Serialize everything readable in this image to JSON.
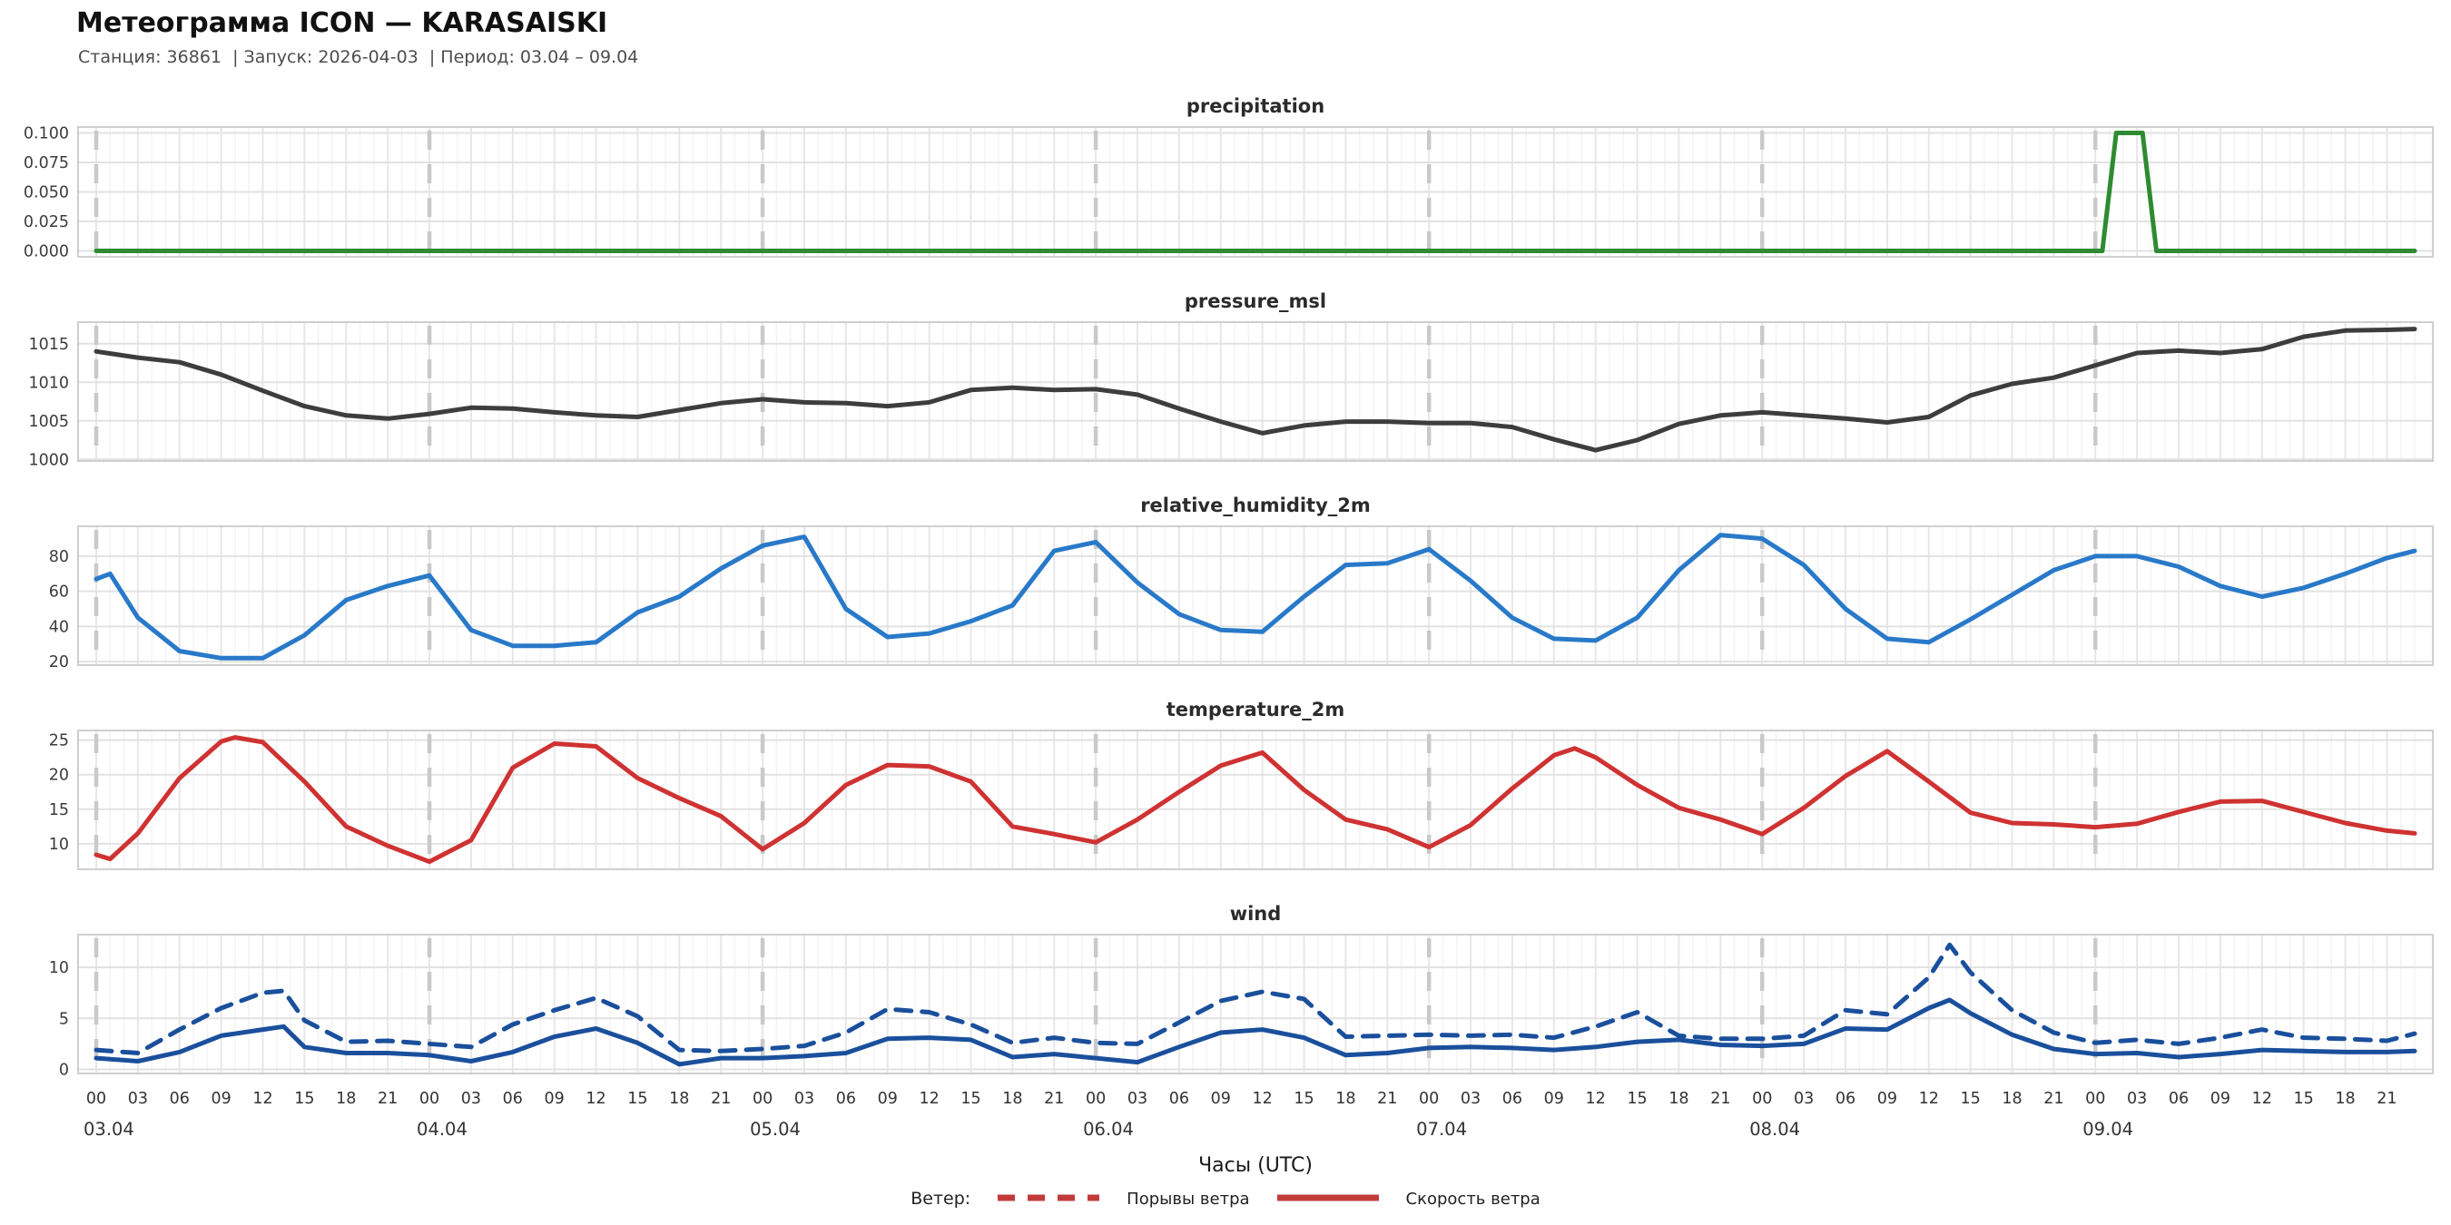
{
  "header": {
    "title": "Метеограмма ICON — KARASAISKI",
    "subtitle": "Станция: 36861  | Запуск: 2026-04-03  | Период: 03.04 – 09.04"
  },
  "xaxis": {
    "label": "Часы (UTC)",
    "hour_tick_step": 3,
    "hour_labels_cycle": [
      "00",
      "03",
      "06",
      "09",
      "12",
      "15",
      "18",
      "21"
    ],
    "days": [
      "03.04",
      "04.04",
      "05.04",
      "06.04",
      "07.04",
      "08.04",
      "09.04"
    ],
    "total_hours": 167
  },
  "legend": {
    "prefix": "Ветер:",
    "items": [
      {
        "label": "Порывы ветра",
        "style": "dashed",
        "color": "#c23b3b"
      },
      {
        "label": "Скорость ветра",
        "style": "solid",
        "color": "#c23b3b"
      }
    ]
  },
  "chart_data": [
    {
      "type": "line",
      "title": "precipitation",
      "color": "#2e8b32",
      "ylim": [
        -0.005,
        0.105
      ],
      "yticks": [
        0,
        0.025,
        0.05,
        0.075,
        0.1
      ],
      "ytick_labels": [
        "0.000",
        "0.025",
        "0.050",
        "0.075",
        "0.100"
      ],
      "series": [
        {
          "name": "precipitation",
          "style": "solid",
          "x": [
            0,
            144.5,
            145.5,
            147.4,
            148.4,
            167
          ],
          "values": [
            0,
            0,
            0.1,
            0.1,
            0,
            0
          ]
        }
      ]
    },
    {
      "type": "line",
      "title": "pressure_msl",
      "color": "#3d3d3d",
      "ylim": [
        999.8,
        1017.8
      ],
      "yticks": [
        1000,
        1005,
        1010,
        1015
      ],
      "ytick_labels": [
        "1000",
        "1005",
        "1010",
        "1015"
      ],
      "series": [
        {
          "name": "pressure_msl",
          "style": "solid",
          "x": [
            0,
            3,
            6,
            9,
            12,
            15,
            18,
            21,
            24,
            27,
            30,
            33,
            36,
            39,
            42,
            45,
            48,
            51,
            54,
            57,
            60,
            63,
            66,
            69,
            72,
            75,
            78,
            81,
            84,
            87,
            90,
            93,
            96,
            99,
            102,
            105,
            108,
            111,
            114,
            117,
            120,
            123,
            126,
            129,
            132,
            135,
            138,
            141,
            144,
            147,
            150,
            153,
            156,
            159,
            162,
            165,
            167
          ],
          "values": [
            1014.0,
            1013.2,
            1012.6,
            1011.0,
            1008.9,
            1006.9,
            1005.7,
            1005.3,
            1005.9,
            1006.7,
            1006.6,
            1006.1,
            1005.7,
            1005.5,
            1006.4,
            1007.3,
            1007.8,
            1007.4,
            1007.3,
            1006.9,
            1007.4,
            1009.0,
            1009.3,
            1009.0,
            1009.1,
            1008.4,
            1006.6,
            1004.9,
            1003.4,
            1004.4,
            1004.9,
            1004.9,
            1004.7,
            1004.7,
            1004.2,
            1002.6,
            1001.2,
            1002.5,
            1004.6,
            1005.7,
            1006.1,
            1005.7,
            1005.3,
            1004.8,
            1005.5,
            1008.3,
            1009.8,
            1010.6,
            1012.2,
            1013.8,
            1014.1,
            1013.8,
            1014.3,
            1015.9,
            1016.7,
            1016.8,
            1016.9
          ]
        }
      ]
    },
    {
      "type": "line",
      "title": "relative_humidity_2m",
      "color": "#2979c9",
      "ylim": [
        18,
        97
      ],
      "yticks": [
        20,
        40,
        60,
        80
      ],
      "ytick_labels": [
        "20",
        "40",
        "60",
        "80"
      ],
      "series": [
        {
          "name": "relative_humidity_2m",
          "style": "solid",
          "x": [
            0,
            1,
            3,
            6,
            9,
            12,
            15,
            18,
            21,
            24,
            27,
            30,
            33,
            36,
            39,
            42,
            45,
            48,
            51,
            54,
            57,
            60,
            63,
            66,
            69,
            72,
            75,
            78,
            81,
            84,
            87,
            90,
            93,
            96,
            99,
            102,
            105,
            108,
            111,
            114,
            117,
            120,
            123,
            126,
            129,
            132,
            135,
            138,
            141,
            144,
            147,
            150,
            153,
            156,
            159,
            162,
            165,
            167
          ],
          "values": [
            67,
            70,
            45,
            26,
            22,
            22,
            35,
            55,
            63,
            69,
            38,
            29,
            29,
            31,
            48,
            57,
            73,
            86,
            91,
            50,
            34,
            36,
            43,
            52,
            83,
            88,
            65,
            47,
            38,
            37,
            57,
            75,
            76,
            84,
            66,
            45,
            33,
            32,
            45,
            72,
            92,
            90,
            75,
            50,
            33,
            31,
            44,
            58,
            72,
            80,
            80,
            74,
            63,
            57,
            62,
            70,
            79,
            83
          ]
        }
      ]
    },
    {
      "type": "line",
      "title": "temperature_2m",
      "color": "#cf3232",
      "ylim": [
        6.3,
        26.4
      ],
      "yticks": [
        10,
        15,
        20,
        25
      ],
      "ytick_labels": [
        "10",
        "15",
        "20",
        "25"
      ],
      "series": [
        {
          "name": "temperature_2m",
          "style": "solid",
          "x": [
            0,
            1,
            3,
            6,
            9,
            10,
            12,
            15,
            18,
            21,
            24,
            27,
            30,
            33,
            36,
            39,
            42,
            45,
            48,
            51,
            54,
            57,
            60,
            63,
            66,
            69,
            72,
            75,
            78,
            81,
            84,
            87,
            90,
            93,
            96,
            99,
            102,
            105,
            106.5,
            108,
            111,
            114,
            117,
            120,
            123,
            126,
            129,
            132,
            135,
            138,
            141,
            144,
            147,
            150,
            153,
            156,
            159,
            162,
            165,
            167
          ],
          "values": [
            8.4,
            7.8,
            11.5,
            19.5,
            24.8,
            25.4,
            24.7,
            19.0,
            12.5,
            9.7,
            7.4,
            10.5,
            21.0,
            24.5,
            24.1,
            19.5,
            16.6,
            14.0,
            9.2,
            13.0,
            18.5,
            21.4,
            21.2,
            19.0,
            12.5,
            11.4,
            10.2,
            13.5,
            17.5,
            21.3,
            23.2,
            17.8,
            13.5,
            12.1,
            9.5,
            12.7,
            18.0,
            22.8,
            23.8,
            22.5,
            18.5,
            15.2,
            13.5,
            11.4,
            15.2,
            19.8,
            23.4,
            19.0,
            14.5,
            13.0,
            12.8,
            12.4,
            12.9,
            14.6,
            16.1,
            16.2,
            14.6,
            13.0,
            11.9,
            11.5
          ]
        }
      ]
    },
    {
      "type": "line",
      "title": "wind",
      "color": "#1a4f9c",
      "ylim": [
        -0.4,
        13.2
      ],
      "yticks": [
        0,
        5,
        10
      ],
      "ytick_labels": [
        "0",
        "5",
        "10"
      ],
      "series": [
        {
          "name": "Порывы ветра",
          "style": "dashed",
          "x": [
            0,
            3,
            6,
            9,
            12,
            13.5,
            15,
            18,
            21,
            24,
            27,
            30,
            33,
            36,
            39,
            42,
            45,
            48,
            51,
            54,
            57,
            60,
            63,
            66,
            69,
            72,
            75,
            78,
            81,
            84,
            87,
            90,
            93,
            96,
            99,
            102,
            105,
            108,
            111,
            114,
            117,
            120,
            123,
            126,
            129,
            132,
            133.5,
            135,
            138,
            141,
            144,
            147,
            150,
            153,
            156,
            159,
            162,
            165,
            167
          ],
          "values": [
            1.9,
            1.6,
            3.9,
            6.0,
            7.5,
            7.7,
            4.8,
            2.7,
            2.8,
            2.5,
            2.2,
            4.4,
            5.8,
            7.0,
            5.2,
            1.9,
            1.8,
            2.0,
            2.3,
            3.6,
            5.9,
            5.6,
            4.4,
            2.6,
            3.1,
            2.6,
            2.5,
            4.6,
            6.7,
            7.6,
            6.9,
            3.2,
            3.3,
            3.4,
            3.3,
            3.4,
            3.1,
            4.2,
            5.6,
            3.3,
            3.0,
            3.0,
            3.3,
            5.8,
            5.4,
            9.0,
            12.2,
            9.5,
            5.8,
            3.6,
            2.6,
            2.9,
            2.5,
            3.1,
            3.9,
            3.1,
            3.0,
            2.8,
            3.5
          ]
        },
        {
          "name": "Скорость ветра",
          "style": "solid",
          "x": [
            0,
            3,
            6,
            9,
            12,
            13.5,
            15,
            18,
            21,
            24,
            27,
            30,
            33,
            36,
            39,
            42,
            45,
            48,
            51,
            54,
            57,
            60,
            63,
            66,
            69,
            72,
            75,
            78,
            81,
            84,
            87,
            90,
            93,
            96,
            99,
            102,
            105,
            108,
            111,
            114,
            117,
            120,
            123,
            126,
            129,
            132,
            133.5,
            135,
            138,
            141,
            144,
            147,
            150,
            153,
            156,
            159,
            162,
            165,
            167
          ],
          "values": [
            1.1,
            0.8,
            1.7,
            3.3,
            3.9,
            4.2,
            2.2,
            1.6,
            1.6,
            1.4,
            0.8,
            1.7,
            3.2,
            4.0,
            2.6,
            0.5,
            1.1,
            1.1,
            1.3,
            1.6,
            3.0,
            3.1,
            2.9,
            1.2,
            1.5,
            1.1,
            0.7,
            2.2,
            3.6,
            3.9,
            3.1,
            1.4,
            1.6,
            2.1,
            2.2,
            2.1,
            1.9,
            2.2,
            2.7,
            2.9,
            2.4,
            2.3,
            2.5,
            4.0,
            3.9,
            6.0,
            6.8,
            5.5,
            3.4,
            2.0,
            1.5,
            1.6,
            1.2,
            1.5,
            1.9,
            1.8,
            1.7,
            1.7,
            1.8
          ]
        }
      ]
    }
  ]
}
